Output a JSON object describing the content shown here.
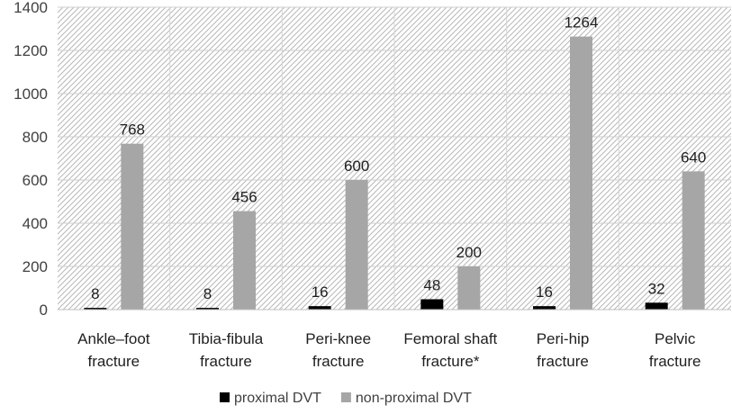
{
  "chart_data": {
    "type": "bar",
    "categories": [
      [
        "Ankle–foot",
        "fracture"
      ],
      [
        "Tibia-fibula",
        "fracture"
      ],
      [
        "Peri-knee",
        "fracture"
      ],
      [
        "Femoral shaft",
        "fracture*"
      ],
      [
        "Peri-hip",
        "fracture"
      ],
      [
        "Pelvic",
        "fracture"
      ]
    ],
    "series": [
      {
        "name": "proximal DVT",
        "color": "#000000",
        "values": [
          8,
          8,
          16,
          48,
          16,
          32
        ]
      },
      {
        "name": "non-proximal DVT",
        "color": "#a6a6a6",
        "values": [
          768,
          456,
          600,
          200,
          1264,
          640
        ]
      }
    ],
    "ylim": [
      0,
      1400
    ],
    "yticks": [
      0,
      200,
      400,
      600,
      800,
      1000,
      1200,
      1400
    ],
    "grid": true,
    "background_pattern": "diagonal-hatch",
    "legend_position": "bottom",
    "title": "",
    "xlabel": "",
    "ylabel": ""
  }
}
